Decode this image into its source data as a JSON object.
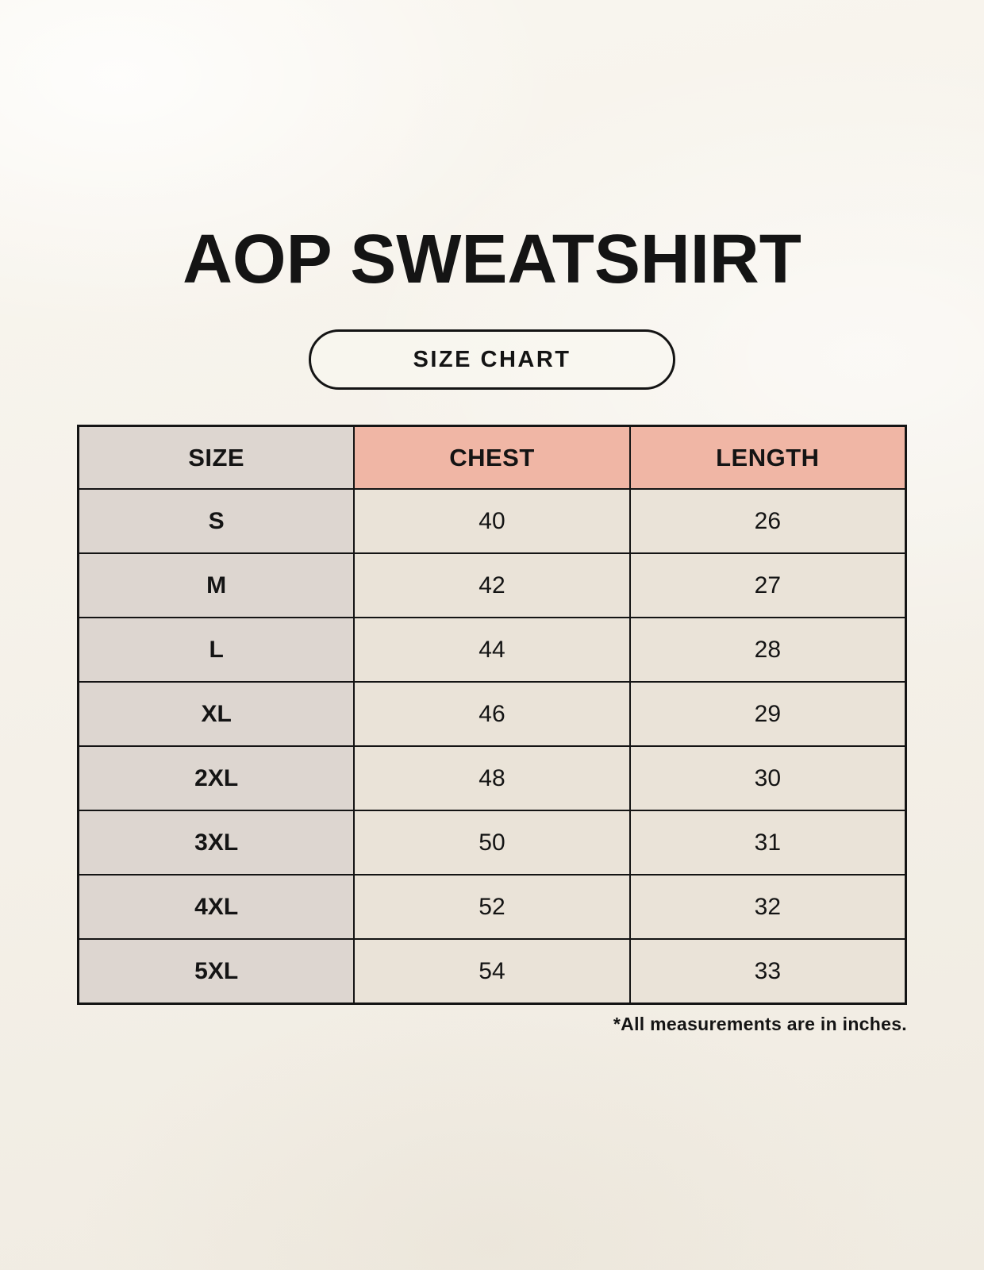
{
  "page": {
    "title": "AOP SWEATSHIRT",
    "badge_label": "SIZE CHART",
    "footnote": "*All measurements are in inches."
  },
  "table": {
    "headers": [
      "SIZE",
      "CHEST",
      "LENGTH"
    ],
    "rows": [
      [
        "S",
        "40",
        "26"
      ],
      [
        "M",
        "42",
        "27"
      ],
      [
        "L",
        "44",
        "28"
      ],
      [
        "XL",
        "46",
        "29"
      ],
      [
        "2XL",
        "48",
        "30"
      ],
      [
        "3XL",
        "50",
        "31"
      ],
      [
        "4XL",
        "52",
        "32"
      ],
      [
        "5XL",
        "54",
        "33"
      ]
    ]
  },
  "chart_data": {
    "type": "table",
    "title": "AOP SWEATSHIRT",
    "columns": [
      "SIZE",
      "CHEST",
      "LENGTH"
    ],
    "rows": [
      [
        "S",
        40,
        26
      ],
      [
        "M",
        42,
        27
      ],
      [
        "L",
        44,
        28
      ],
      [
        "XL",
        46,
        29
      ],
      [
        "2XL",
        48,
        30
      ],
      [
        "3XL",
        50,
        31
      ],
      [
        "4XL",
        52,
        32
      ],
      [
        "5XL",
        54,
        33
      ]
    ],
    "units_note": "*All measurements are in inches."
  },
  "colors": {
    "accent_pink": "#f0b6a5",
    "neutral_gray": "#ddd6d0",
    "cream_cell": "#eae3d8",
    "border": "#141414",
    "background": "#f4f0e8",
    "text": "#141414"
  }
}
